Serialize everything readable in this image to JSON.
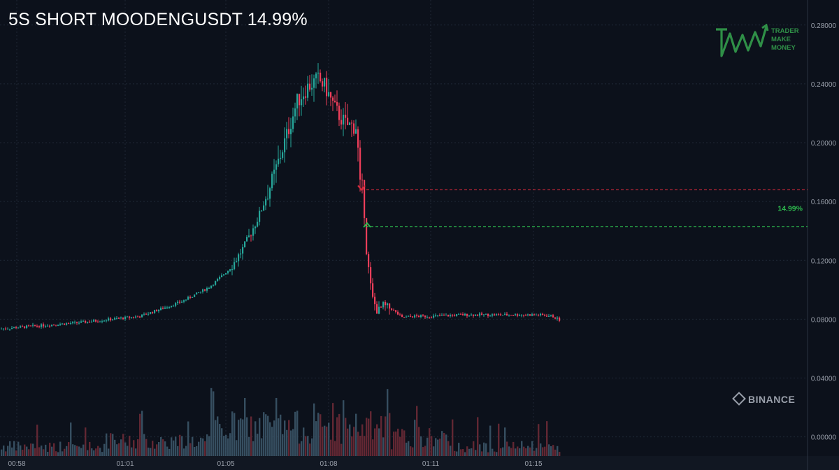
{
  "title": "5S SHORT MOODENGUSDT 14.99%",
  "branding": {
    "logo_icon": "tmm-zigzag-arrow-logo",
    "logo_lines": [
      "TRADER",
      "MAKE",
      "MONEY"
    ],
    "exchange": "BINANCE",
    "exchange_icon": "binance-diamond-icon"
  },
  "colors": {
    "background": "#0c111b",
    "up": "#26a69a",
    "down": "#ef3e5a",
    "entry_line": "#d42a3c",
    "exit_line": "#2db84d",
    "pnl_label": "#2db84d",
    "grid": "#1f2836",
    "axis_text": "#9aa0ab"
  },
  "chart_data": {
    "type": "candlestick",
    "symbol": "MOODENGUSDT",
    "timeframe": "5S",
    "x_tick_labels": [
      "00:58",
      "01:01",
      "01:05",
      "01:08",
      "01:11",
      "01:15"
    ],
    "y_tick_labels": [
      "0.28000",
      "0.24000",
      "0.20000",
      "0.16000",
      "0.12000",
      "0.08000",
      "0.04000",
      "0.00000"
    ],
    "y_ticks": [
      0.28,
      0.24,
      0.2,
      0.16,
      0.12,
      0.08,
      0.04,
      0.0
    ],
    "ylim": [
      -0.013,
      0.297
    ],
    "grid": true,
    "price_keyframes": [
      {
        "t": 0,
        "price": 0.0735
      },
      {
        "t": 120,
        "price": 0.078
      },
      {
        "t": 200,
        "price": 0.082
      },
      {
        "t": 260,
        "price": 0.092
      },
      {
        "t": 300,
        "price": 0.102
      },
      {
        "t": 330,
        "price": 0.115
      },
      {
        "t": 350,
        "price": 0.13
      },
      {
        "t": 370,
        "price": 0.15
      },
      {
        "t": 390,
        "price": 0.175
      },
      {
        "t": 410,
        "price": 0.205
      },
      {
        "t": 425,
        "price": 0.228
      },
      {
        "t": 440,
        "price": 0.238
      },
      {
        "t": 455,
        "price": 0.243
      },
      {
        "t": 465,
        "price": 0.238
      },
      {
        "t": 480,
        "price": 0.222
      },
      {
        "t": 495,
        "price": 0.212
      },
      {
        "t": 510,
        "price": 0.211
      },
      {
        "t": 515,
        "price": 0.17
      },
      {
        "t": 520,
        "price": 0.168
      },
      {
        "t": 522,
        "price": 0.135
      },
      {
        "t": 528,
        "price": 0.11
      },
      {
        "t": 532,
        "price": 0.095
      },
      {
        "t": 540,
        "price": 0.085
      },
      {
        "t": 548,
        "price": 0.089
      },
      {
        "t": 560,
        "price": 0.087
      },
      {
        "t": 575,
        "price": 0.081
      },
      {
        "t": 590,
        "price": 0.082
      },
      {
        "t": 620,
        "price": 0.082
      },
      {
        "t": 660,
        "price": 0.083
      },
      {
        "t": 720,
        "price": 0.083
      },
      {
        "t": 770,
        "price": 0.083
      },
      {
        "t": 790,
        "price": 0.082
      },
      {
        "t": 802,
        "price": 0.079
      }
    ],
    "entry": {
      "price": 0.168,
      "label": "short-entry-marker"
    },
    "exit": {
      "price": 0.143,
      "label_text": "14.99%"
    },
    "volume": {
      "label": "volume",
      "ylim": [
        0,
        1
      ]
    }
  }
}
